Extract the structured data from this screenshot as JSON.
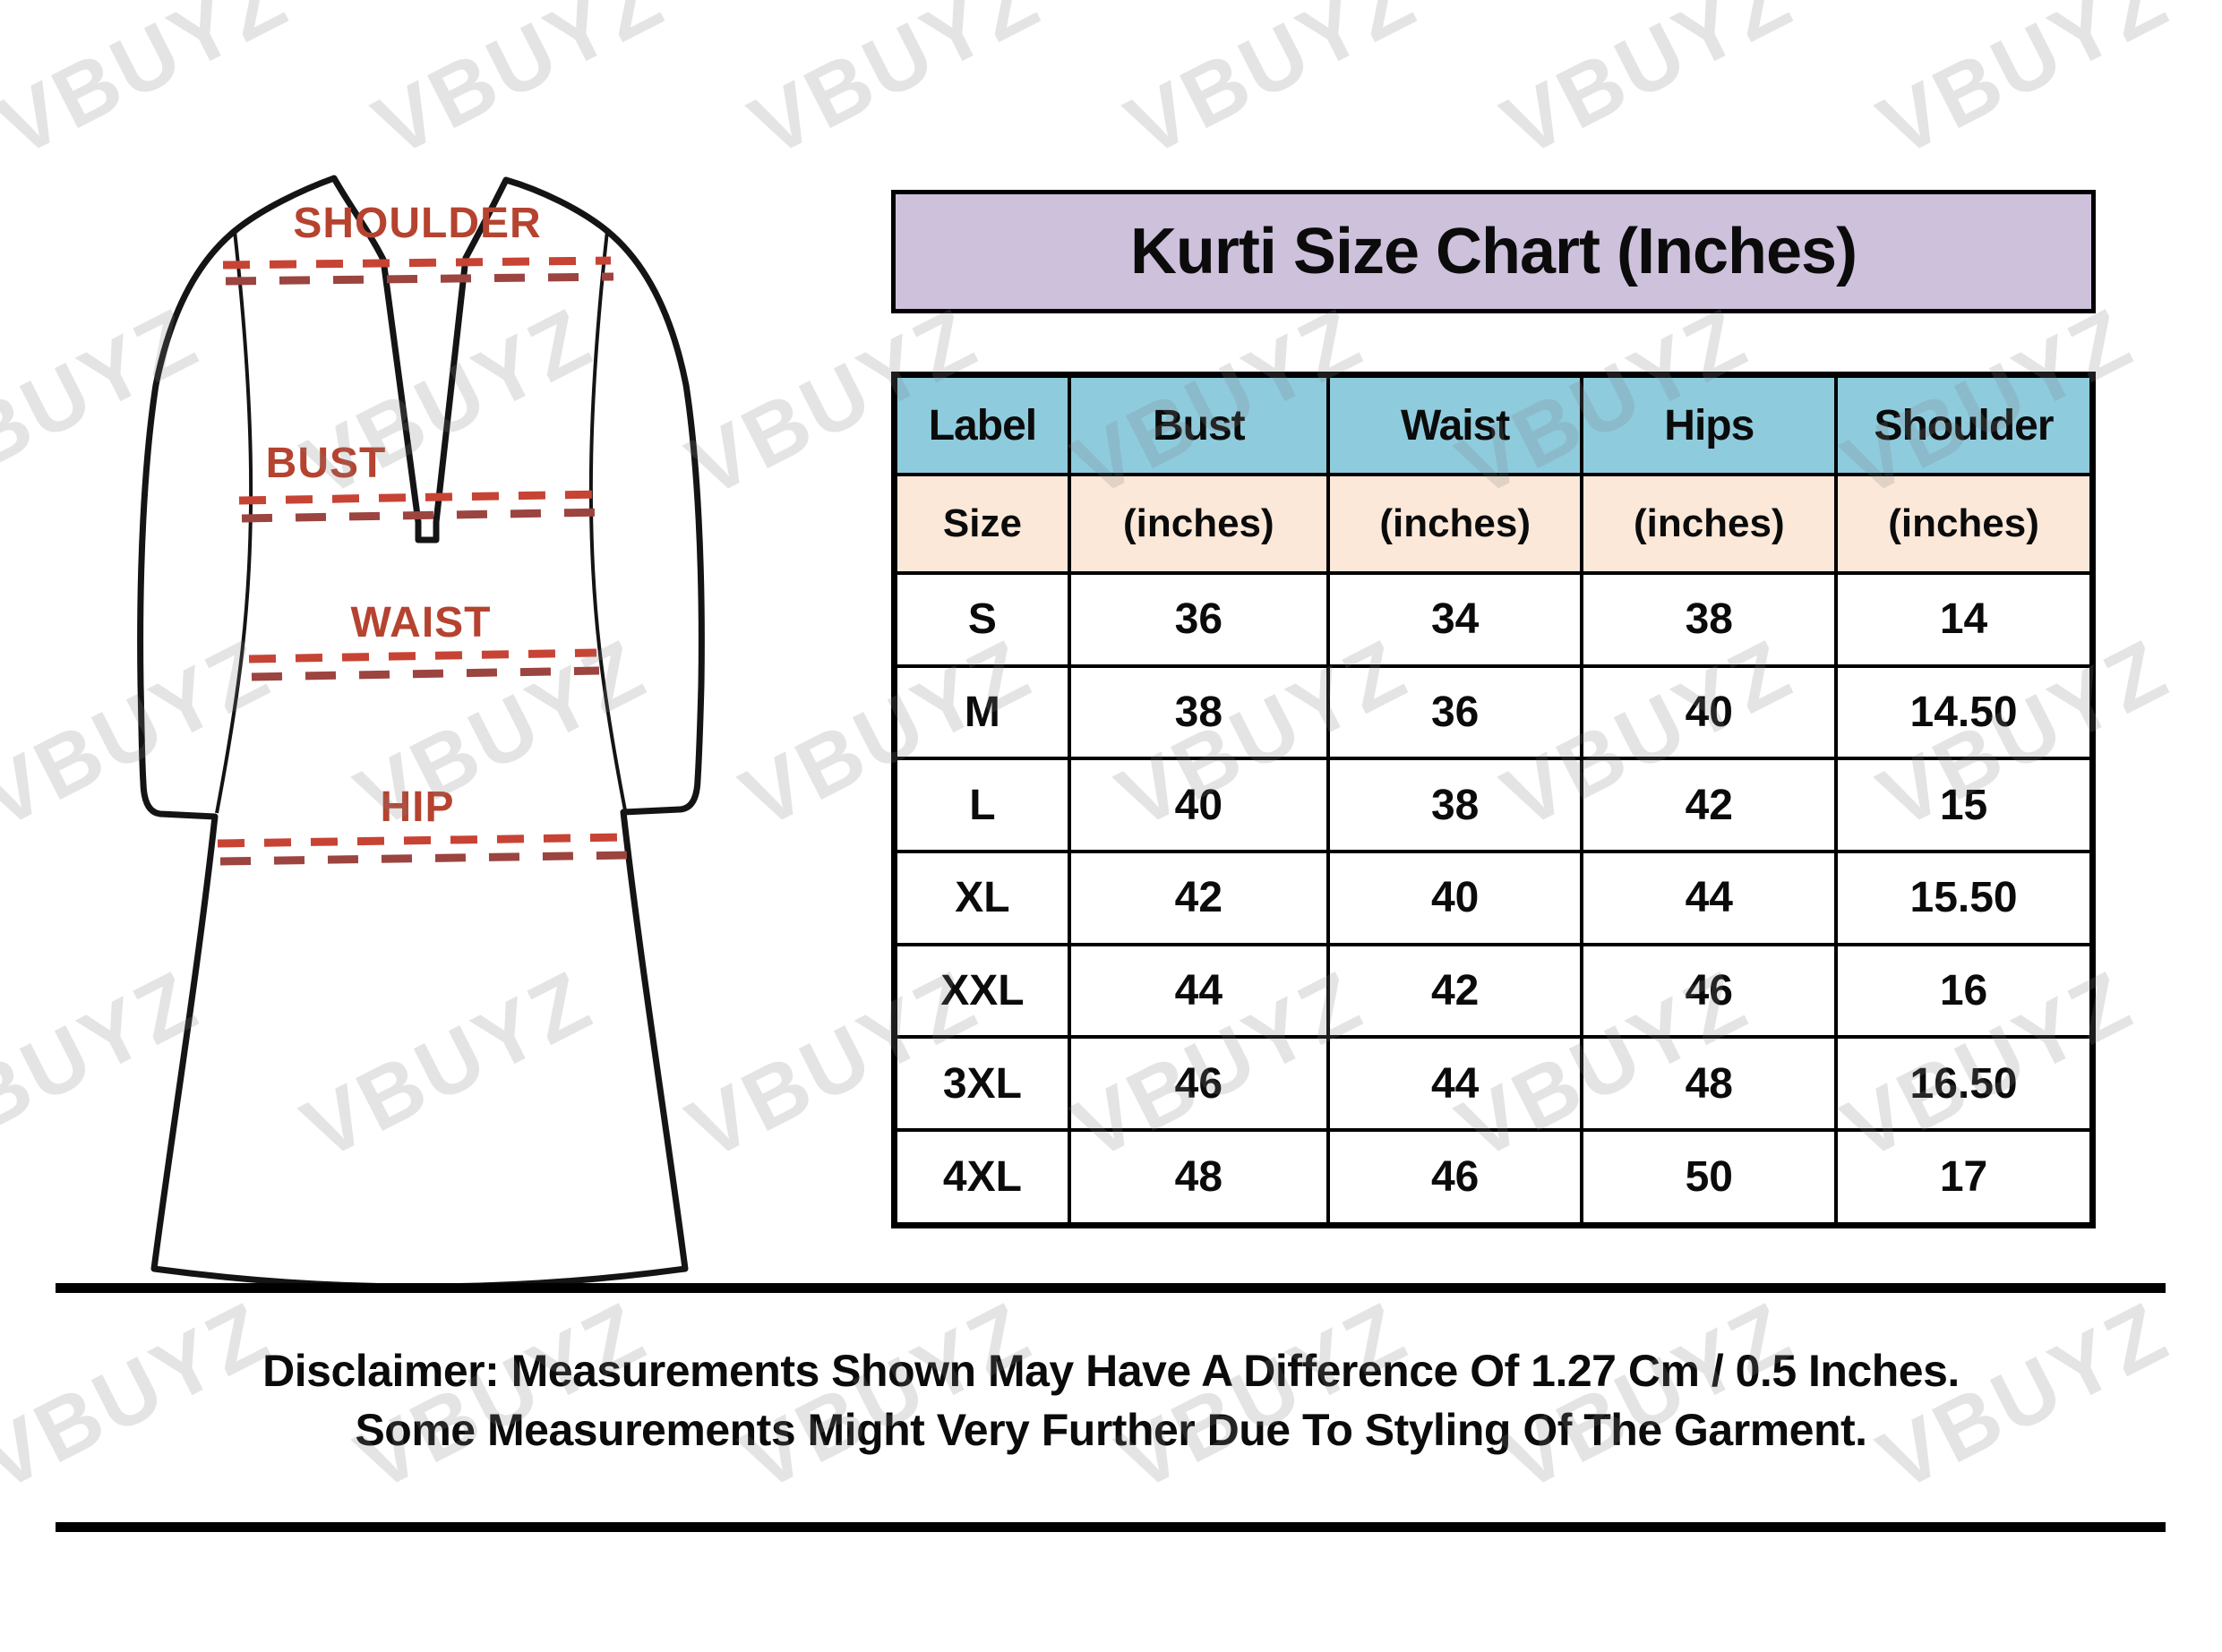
{
  "watermark": "VBUYZ",
  "diagram": {
    "labels": {
      "shoulder": "SHOULDER",
      "bust": "BUST",
      "waist": "WAIST",
      "hip": "HIP"
    },
    "label_color": "#b5432f",
    "dash_color_primary": "#c74334",
    "dash_color_secondary": "#9c4440"
  },
  "title": "Kurti Size Chart (Inches)",
  "table": {
    "header_row1": [
      "Label",
      "Bust",
      "Waist",
      "Hips",
      "Shoulder"
    ],
    "header_row2": [
      "Size",
      "(inches)",
      "(inches)",
      "(inches)",
      "(inches)"
    ],
    "rows": [
      [
        "S",
        "36",
        "34",
        "38",
        "14"
      ],
      [
        "M",
        "38",
        "36",
        "40",
        "14.50"
      ],
      [
        "L",
        "40",
        "38",
        "42",
        "15"
      ],
      [
        "XL",
        "42",
        "40",
        "44",
        "15.50"
      ],
      [
        "XXL",
        "44",
        "42",
        "46",
        "16"
      ],
      [
        "3XL",
        "46",
        "44",
        "48",
        "16.50"
      ],
      [
        "4XL",
        "48",
        "46",
        "50",
        "17"
      ]
    ]
  },
  "disclaimer": {
    "line1": "Disclaimer: Measurements Shown May Have A Difference Of 1.27 Cm / 0.5 Inches.",
    "line2": "Some Measurements Might Very Further Due To Styling Of The Garment."
  },
  "colors": {
    "title_bg": "#cdc1dc",
    "header_bg": "#8ecbdd",
    "subheader_bg": "#fbe8d8",
    "border": "#000000"
  },
  "chart_data": {
    "type": "table",
    "title": "Kurti Size Chart (Inches)",
    "columns": [
      "Label Size",
      "Bust (inches)",
      "Waist (inches)",
      "Hips (inches)",
      "Shoulder (inches)"
    ],
    "rows": [
      [
        "S",
        36,
        34,
        38,
        14
      ],
      [
        "M",
        38,
        36,
        40,
        14.5
      ],
      [
        "L",
        40,
        38,
        42,
        15
      ],
      [
        "XL",
        42,
        40,
        44,
        15.5
      ],
      [
        "XXL",
        44,
        42,
        46,
        16
      ],
      [
        "3XL",
        46,
        44,
        48,
        16.5
      ],
      [
        "4XL",
        48,
        46,
        50,
        17
      ]
    ]
  }
}
